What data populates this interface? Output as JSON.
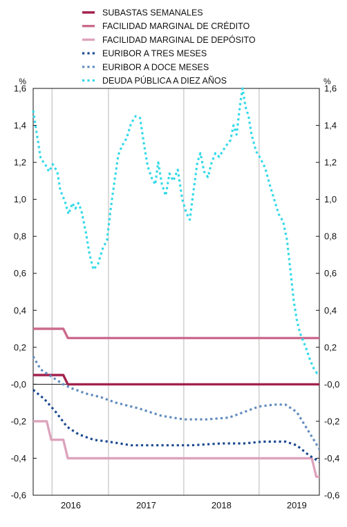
{
  "chart_data": {
    "type": "line",
    "y_unit_left": "%",
    "y_unit_right": "%",
    "ylim": [
      -0.6,
      1.6
    ],
    "y_ticks": [
      1.6,
      1.4,
      1.2,
      1.0,
      0.8,
      0.6,
      0.4,
      0.2,
      0.0,
      -0.2,
      -0.4,
      -0.6
    ],
    "y_tick_labels": [
      "1,6",
      "1,4",
      "1,2",
      "1,0",
      "0,8",
      "0,6",
      "0,4",
      "0,2",
      "-0,0",
      "-0,2",
      "-0,4",
      "-0,6"
    ],
    "xlim": [
      2015.5,
      2019.3
    ],
    "x_gridlines": [
      2015.75,
      2016.5,
      2017.5,
      2018.5
    ],
    "x_ticks": [
      {
        "value": 2016.0,
        "label": "2016"
      },
      {
        "value": 2017.0,
        "label": "2017"
      },
      {
        "value": 2018.0,
        "label": "2018"
      },
      {
        "value": 2019.0,
        "label": "2019"
      }
    ],
    "grid": "vertical",
    "legend_position": "top",
    "series": [
      {
        "name": "SUBASTAS SEMANALES",
        "color": "#a3224c",
        "style": "solid",
        "points": [
          [
            2015.5,
            0.05
          ],
          [
            2015.9,
            0.05
          ],
          [
            2015.96,
            0.0
          ],
          [
            2019.3,
            0.0
          ]
        ]
      },
      {
        "name": "FACILIDAD MARGINAL DE CRÉDITO",
        "color": "#cc6a8e",
        "style": "solid",
        "points": [
          [
            2015.5,
            0.3
          ],
          [
            2015.9,
            0.3
          ],
          [
            2015.96,
            0.25
          ],
          [
            2019.3,
            0.25
          ]
        ]
      },
      {
        "name": "FACILIDAD MARGINAL DE DEPÓSITO",
        "color": "#dea3bc",
        "style": "solid",
        "points": [
          [
            2015.5,
            -0.2
          ],
          [
            2015.68,
            -0.2
          ],
          [
            2015.74,
            -0.3
          ],
          [
            2015.9,
            -0.3
          ],
          [
            2015.96,
            -0.4
          ],
          [
            2019.2,
            -0.4
          ],
          [
            2019.26,
            -0.5
          ],
          [
            2019.3,
            -0.5
          ]
        ]
      },
      {
        "name": "EURIBOR A TRES MESES",
        "color": "#1c4a8f",
        "style": "dotted",
        "points": [
          [
            2015.5,
            -0.03
          ],
          [
            2015.65,
            -0.08
          ],
          [
            2015.8,
            -0.15
          ],
          [
            2015.95,
            -0.23
          ],
          [
            2016.1,
            -0.27
          ],
          [
            2016.3,
            -0.3
          ],
          [
            2016.5,
            -0.31
          ],
          [
            2016.8,
            -0.33
          ],
          [
            2017.2,
            -0.33
          ],
          [
            2017.6,
            -0.33
          ],
          [
            2018.0,
            -0.32
          ],
          [
            2018.3,
            -0.32
          ],
          [
            2018.55,
            -0.31
          ],
          [
            2018.85,
            -0.31
          ],
          [
            2019.0,
            -0.33
          ],
          [
            2019.15,
            -0.38
          ],
          [
            2019.3,
            -0.42
          ]
        ]
      },
      {
        "name": "EURIBOR A DOCE MESES",
        "color": "#5f8bbe",
        "style": "dotted",
        "points": [
          [
            2015.5,
            0.15
          ],
          [
            2015.6,
            0.08
          ],
          [
            2015.75,
            0.04
          ],
          [
            2015.9,
            0.0
          ],
          [
            2016.0,
            -0.02
          ],
          [
            2016.2,
            -0.05
          ],
          [
            2016.4,
            -0.07
          ],
          [
            2016.6,
            -0.1
          ],
          [
            2016.9,
            -0.13
          ],
          [
            2017.2,
            -0.17
          ],
          [
            2017.5,
            -0.19
          ],
          [
            2017.8,
            -0.19
          ],
          [
            2018.1,
            -0.18
          ],
          [
            2018.3,
            -0.15
          ],
          [
            2018.5,
            -0.12
          ],
          [
            2018.7,
            -0.11
          ],
          [
            2018.85,
            -0.11
          ],
          [
            2019.0,
            -0.15
          ],
          [
            2019.15,
            -0.25
          ],
          [
            2019.3,
            -0.35
          ]
        ]
      },
      {
        "name": "DEUDA PÚBLICA A DIEZ AÑOS",
        "color": "#33d9e8",
        "style": "dotted",
        "points": [
          [
            2015.5,
            1.48
          ],
          [
            2015.55,
            1.35
          ],
          [
            2015.6,
            1.22
          ],
          [
            2015.66,
            1.19
          ],
          [
            2015.71,
            1.15
          ],
          [
            2015.76,
            1.19
          ],
          [
            2015.82,
            1.15
          ],
          [
            2015.86,
            1.05
          ],
          [
            2015.92,
            0.99
          ],
          [
            2015.97,
            0.92
          ],
          [
            2016.02,
            0.98
          ],
          [
            2016.06,
            0.95
          ],
          [
            2016.1,
            0.98
          ],
          [
            2016.14,
            0.94
          ],
          [
            2016.2,
            0.82
          ],
          [
            2016.25,
            0.7
          ],
          [
            2016.3,
            0.62
          ],
          [
            2016.36,
            0.65
          ],
          [
            2016.42,
            0.73
          ],
          [
            2016.48,
            0.78
          ],
          [
            2016.53,
            0.95
          ],
          [
            2016.58,
            1.1
          ],
          [
            2016.63,
            1.24
          ],
          [
            2016.68,
            1.29
          ],
          [
            2016.74,
            1.33
          ],
          [
            2016.8,
            1.41
          ],
          [
            2016.86,
            1.45
          ],
          [
            2016.92,
            1.44
          ],
          [
            2016.97,
            1.3
          ],
          [
            2017.02,
            1.18
          ],
          [
            2017.07,
            1.12
          ],
          [
            2017.12,
            1.08
          ],
          [
            2017.16,
            1.2
          ],
          [
            2017.21,
            1.08
          ],
          [
            2017.26,
            1.02
          ],
          [
            2017.31,
            1.14
          ],
          [
            2017.36,
            1.1
          ],
          [
            2017.42,
            1.16
          ],
          [
            2017.48,
            1.0
          ],
          [
            2017.53,
            0.93
          ],
          [
            2017.58,
            0.89
          ],
          [
            2017.63,
            1.05
          ],
          [
            2017.68,
            1.2
          ],
          [
            2017.72,
            1.25
          ],
          [
            2017.77,
            1.15
          ],
          [
            2017.82,
            1.12
          ],
          [
            2017.87,
            1.2
          ],
          [
            2017.92,
            1.25
          ],
          [
            2017.97,
            1.23
          ],
          [
            2018.03,
            1.27
          ],
          [
            2018.08,
            1.3
          ],
          [
            2018.12,
            1.32
          ],
          [
            2018.16,
            1.4
          ],
          [
            2018.2,
            1.35
          ],
          [
            2018.25,
            1.52
          ],
          [
            2018.28,
            1.6
          ],
          [
            2018.32,
            1.5
          ],
          [
            2018.36,
            1.45
          ],
          [
            2018.4,
            1.35
          ],
          [
            2018.46,
            1.26
          ],
          [
            2018.52,
            1.22
          ],
          [
            2018.58,
            1.17
          ],
          [
            2018.64,
            1.08
          ],
          [
            2018.7,
            1.0
          ],
          [
            2018.76,
            0.92
          ],
          [
            2018.82,
            0.88
          ],
          [
            2018.87,
            0.78
          ],
          [
            2018.92,
            0.6
          ],
          [
            2018.96,
            0.45
          ],
          [
            2019.0,
            0.35
          ],
          [
            2019.04,
            0.28
          ],
          [
            2019.08,
            0.24
          ],
          [
            2019.12,
            0.2
          ],
          [
            2019.17,
            0.14
          ],
          [
            2019.22,
            0.09
          ],
          [
            2019.27,
            0.06
          ],
          [
            2019.3,
            0.07
          ]
        ]
      }
    ]
  }
}
